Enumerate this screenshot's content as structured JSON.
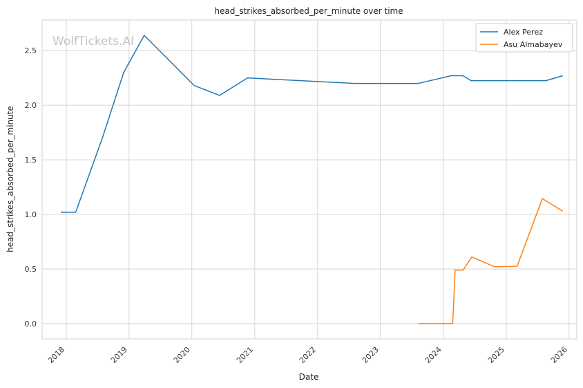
{
  "watermark": "WolfTickets.AI",
  "chart_data": {
    "type": "line",
    "title": "head_strikes_absorbed_per_minute over time",
    "xlabel": "Date",
    "ylabel": "head_strikes_absorbed_per_minute",
    "xlim": [
      "2017-08-14",
      "2026-02-15"
    ],
    "ylim": [
      -0.14,
      2.78
    ],
    "x_ticks": [
      "2018",
      "2019",
      "2020",
      "2021",
      "2022",
      "2023",
      "2024",
      "2025",
      "2026"
    ],
    "y_ticks": [
      "0.0",
      "0.5",
      "1.0",
      "1.5",
      "2.0",
      "2.5"
    ],
    "grid": true,
    "legend_position": "top-right",
    "series": [
      {
        "name": "Alex Perez",
        "color": "#1f77b4",
        "points": [
          {
            "x": "2017-11-30",
            "y": 1.02
          },
          {
            "x": "2018-02-25",
            "y": 1.02
          },
          {
            "x": "2018-07-30",
            "y": 1.7
          },
          {
            "x": "2018-12-01",
            "y": 2.3
          },
          {
            "x": "2019-03-30",
            "y": 2.64
          },
          {
            "x": "2020-01-15",
            "y": 2.18
          },
          {
            "x": "2020-06-10",
            "y": 2.09
          },
          {
            "x": "2020-11-20",
            "y": 2.25
          },
          {
            "x": "2022-07-30",
            "y": 2.2
          },
          {
            "x": "2023-08-10",
            "y": 2.2
          },
          {
            "x": "2024-02-15",
            "y": 2.27
          },
          {
            "x": "2024-04-25",
            "y": 2.27
          },
          {
            "x": "2024-06-10",
            "y": 2.225
          },
          {
            "x": "2025-08-20",
            "y": 2.225
          },
          {
            "x": "2025-11-25",
            "y": 2.27
          }
        ]
      },
      {
        "name": "Asu Almabayev",
        "color": "#ff7f0e",
        "points": [
          {
            "x": "2023-08-10",
            "y": 0.0
          },
          {
            "x": "2024-02-25",
            "y": 0.0
          },
          {
            "x": "2024-03-10",
            "y": 0.49
          },
          {
            "x": "2024-04-25",
            "y": 0.49
          },
          {
            "x": "2024-06-15",
            "y": 0.61
          },
          {
            "x": "2024-10-25",
            "y": 0.52
          },
          {
            "x": "2025-03-05",
            "y": 0.525
          },
          {
            "x": "2025-07-30",
            "y": 1.145
          },
          {
            "x": "2025-11-25",
            "y": 1.03
          }
        ]
      }
    ]
  }
}
